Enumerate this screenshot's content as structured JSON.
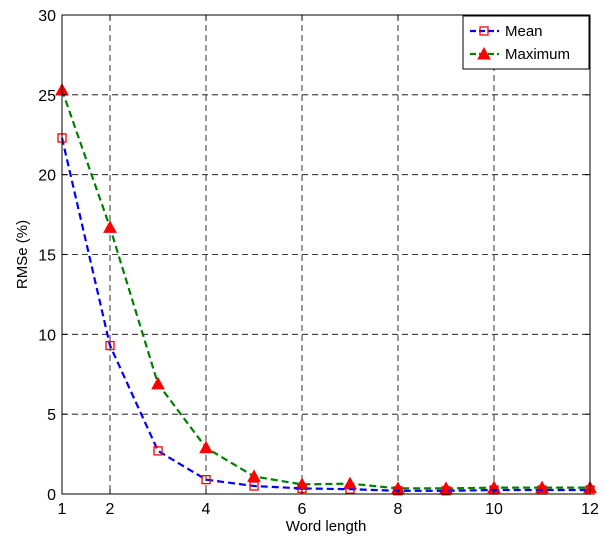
{
  "chart_data": {
    "type": "line",
    "title": "",
    "xlabel": "Word length",
    "ylabel": "RMSe (%)",
    "xlim": [
      1,
      12
    ],
    "ylim": [
      0,
      30
    ],
    "xticks": [
      1,
      2,
      4,
      6,
      8,
      10,
      12
    ],
    "yticks": [
      0,
      5,
      10,
      15,
      20,
      25,
      30
    ],
    "grid": true,
    "legend_position": "top-right",
    "x": [
      1,
      2,
      3,
      4,
      5,
      6,
      7,
      8,
      9,
      10,
      11,
      12
    ],
    "series": [
      {
        "name": "Mean",
        "color": "#0000ff",
        "marker_color": "#ff0000",
        "marker": "square",
        "line_style": "dashed",
        "values": [
          22.3,
          9.3,
          2.7,
          0.9,
          0.5,
          0.35,
          0.3,
          0.2,
          0.2,
          0.25,
          0.25,
          0.25
        ]
      },
      {
        "name": "Maximum",
        "color": "#007f00",
        "marker_color": "#ff0000",
        "marker": "triangle",
        "line_style": "dashed",
        "values": [
          25.3,
          16.7,
          6.9,
          2.9,
          1.1,
          0.6,
          0.65,
          0.35,
          0.35,
          0.4,
          0.4,
          0.4
        ]
      }
    ]
  }
}
